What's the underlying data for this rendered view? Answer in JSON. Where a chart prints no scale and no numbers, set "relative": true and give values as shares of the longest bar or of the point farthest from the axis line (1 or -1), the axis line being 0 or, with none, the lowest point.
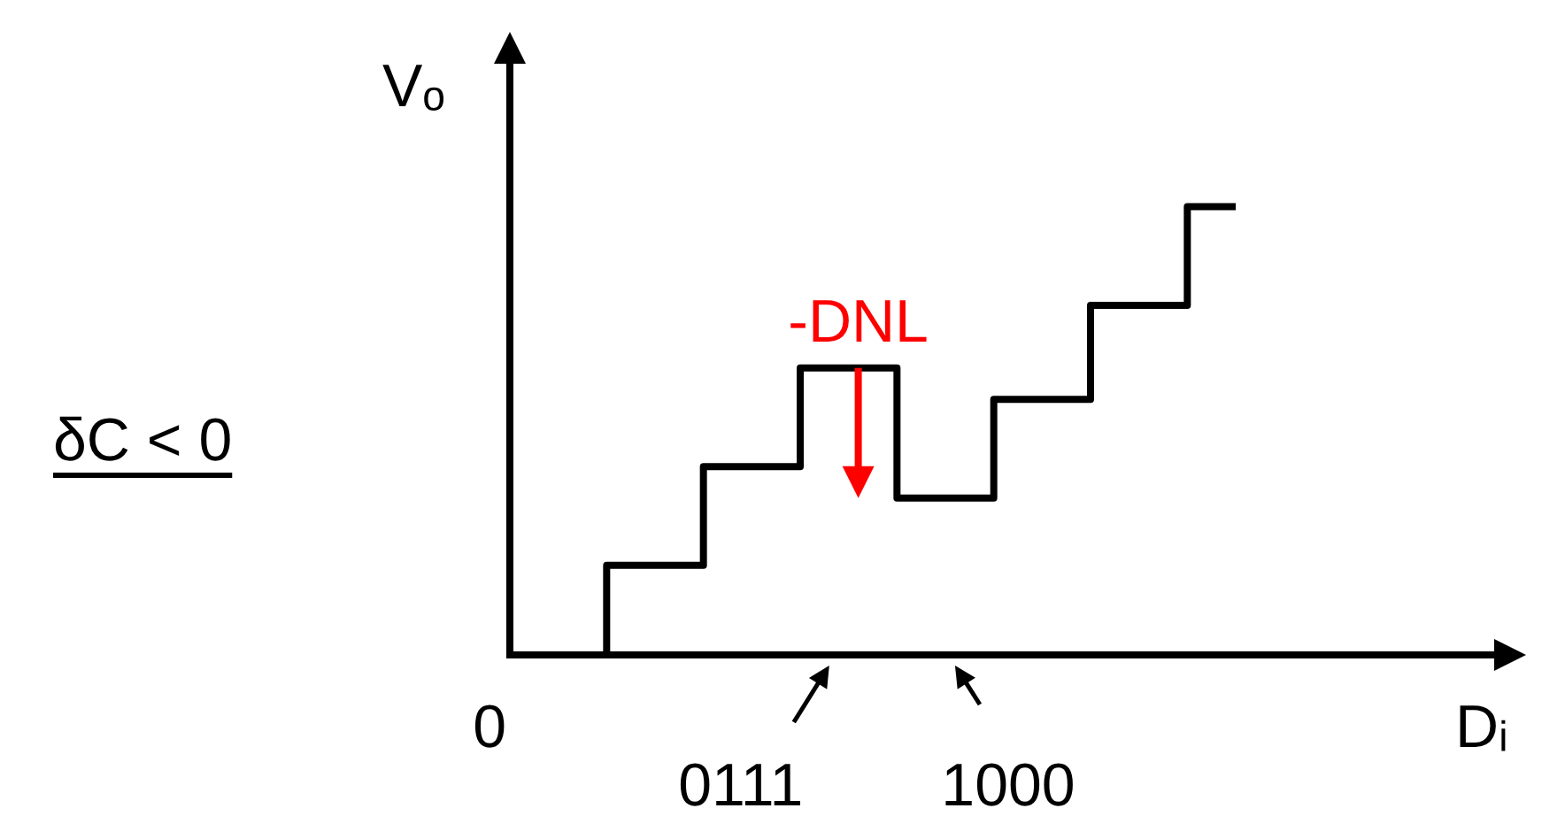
{
  "chart_data": {
    "type": "step",
    "relative": true,
    "xlabel": "Dᵢ",
    "ylabel": "Vₒ",
    "categories": [
      null,
      null,
      null,
      null,
      null,
      null,
      null,
      null
    ],
    "series": [
      {
        "color": "#000000",
        "values": [
          0,
          0.2,
          0.42,
          0.64,
          0.35,
          0.57,
          0.78,
          1
        ]
      }
    ],
    "annotations": [
      "0",
      "0111",
      "1000",
      "δC < 0",
      "-DNL"
    ],
    "legend": false,
    "grid": false
  }
}
